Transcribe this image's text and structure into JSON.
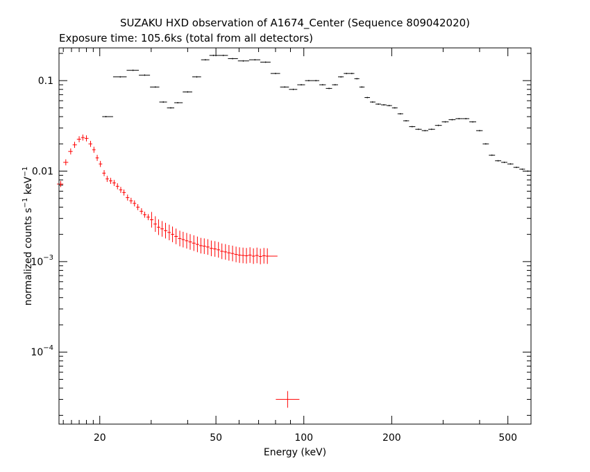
{
  "chart_data": {
    "type": "scatter",
    "title": "SUZAKU HXD observation of A1674_Center (Sequence 809042020)",
    "subtitle": "Exposure time: 105.6ks (total from all detectors)",
    "xlabel": "Energy (keV)",
    "ylabel": {
      "prefix": "normalized counts s",
      "sup1": "−1",
      "mid": " keV",
      "sup2": "−1"
    },
    "x_scale": "log",
    "y_scale": "log",
    "xlim": [
      14.5,
      600
    ],
    "ylim": [
      1.6e-05,
      0.23
    ],
    "x_ticks": [
      {
        "value": 20,
        "label": "20"
      },
      {
        "value": 50,
        "label": "50"
      },
      {
        "value": 100,
        "label": "100"
      },
      {
        "value": 200,
        "label": "200"
      },
      {
        "value": 500,
        "label": "500"
      }
    ],
    "y_ticks": [
      {
        "value": 0.1,
        "label": "0.1"
      },
      {
        "value": 0.01,
        "label": "0.01"
      },
      {
        "value": 0.001,
        "base": "10",
        "exp": "−3"
      },
      {
        "value": 0.0001,
        "base": "10",
        "exp": "−4"
      }
    ],
    "series": [
      {
        "color": "#000000",
        "points": [
          [
            21,
            0.04
          ],
          [
            23.5,
            0.11
          ],
          [
            26,
            0.13
          ],
          [
            28.5,
            0.115
          ],
          [
            31,
            0.085
          ],
          [
            33,
            0.058
          ],
          [
            35,
            0.05
          ],
          [
            37,
            0.057
          ],
          [
            40,
            0.075
          ],
          [
            43,
            0.11
          ],
          [
            46,
            0.17
          ],
          [
            49,
            0.19
          ],
          [
            53,
            0.19
          ],
          [
            57,
            0.175
          ],
          [
            62,
            0.165
          ],
          [
            68,
            0.17
          ],
          [
            74,
            0.16
          ],
          [
            80,
            0.12
          ],
          [
            86,
            0.085
          ],
          [
            92,
            0.08
          ],
          [
            98,
            0.09
          ],
          [
            104,
            0.1
          ],
          [
            110,
            0.1
          ],
          [
            116,
            0.09
          ],
          [
            122,
            0.082
          ],
          [
            128,
            0.09
          ],
          [
            134,
            0.11
          ],
          [
            140,
            0.12
          ],
          [
            146,
            0.12
          ],
          [
            152,
            0.105
          ],
          [
            158,
            0.085
          ],
          [
            165,
            0.065
          ],
          [
            172,
            0.058
          ],
          [
            180,
            0.055
          ],
          [
            188,
            0.054
          ],
          [
            196,
            0.053
          ],
          [
            205,
            0.05
          ],
          [
            214,
            0.043
          ],
          [
            224,
            0.036
          ],
          [
            235,
            0.031
          ],
          [
            247,
            0.029
          ],
          [
            260,
            0.028
          ],
          [
            274,
            0.029
          ],
          [
            289,
            0.032
          ],
          [
            305,
            0.035
          ],
          [
            322,
            0.037
          ],
          [
            340,
            0.038
          ],
          [
            359,
            0.038
          ],
          [
            379,
            0.035
          ],
          [
            400,
            0.028
          ],
          [
            420,
            0.02
          ],
          [
            441,
            0.015
          ],
          [
            463,
            0.013
          ],
          [
            486,
            0.0125
          ],
          [
            510,
            0.012
          ],
          [
            535,
            0.011
          ],
          [
            560,
            0.0105
          ],
          [
            585,
            0.01
          ]
        ]
      },
      {
        "color": "#ff0000",
        "points": [
          [
            14.7,
            0.0072
          ],
          [
            15.3,
            0.0125
          ],
          [
            15.9,
            0.0165
          ],
          [
            16.4,
            0.0195
          ],
          [
            17.0,
            0.0225
          ],
          [
            17.5,
            0.0235
          ],
          [
            18.0,
            0.023
          ],
          [
            18.6,
            0.02
          ],
          [
            19.1,
            0.0172
          ],
          [
            19.6,
            0.014
          ],
          [
            20.1,
            0.012
          ],
          [
            20.7,
            0.0095
          ],
          [
            21.2,
            0.0082
          ],
          [
            21.8,
            0.0078
          ],
          [
            22.4,
            0.0074
          ],
          [
            23.0,
            0.0068
          ],
          [
            23.6,
            0.0062
          ],
          [
            24.2,
            0.0058
          ],
          [
            24.9,
            0.0051
          ],
          [
            25.6,
            0.0047
          ],
          [
            26.3,
            0.0044
          ],
          [
            27.0,
            0.004
          ],
          [
            27.8,
            0.0036
          ],
          [
            28.5,
            0.0033
          ],
          [
            29.3,
            0.0031
          ],
          [
            30.1,
            0.0029
          ],
          [
            31.0,
            0.0026
          ],
          [
            31.8,
            0.0024
          ],
          [
            32.7,
            0.0023
          ],
          [
            33.6,
            0.0022
          ],
          [
            34.6,
            0.0021
          ],
          [
            35.5,
            0.002
          ],
          [
            36.5,
            0.0019
          ],
          [
            37.6,
            0.0018
          ],
          [
            38.6,
            0.00175
          ],
          [
            39.7,
            0.0017
          ],
          [
            40.8,
            0.00165
          ],
          [
            42.0,
            0.0016
          ],
          [
            43.2,
            0.00155
          ],
          [
            44.4,
            0.0015
          ],
          [
            45.6,
            0.00148
          ],
          [
            46.9,
            0.00145
          ],
          [
            48.2,
            0.0014
          ],
          [
            49.6,
            0.00138
          ],
          [
            51.0,
            0.00135
          ],
          [
            52.4,
            0.0013
          ],
          [
            53.9,
            0.00128
          ],
          [
            55.4,
            0.00125
          ],
          [
            57.0,
            0.00123
          ],
          [
            58.6,
            0.0012
          ],
          [
            60.2,
            0.00118
          ],
          [
            61.9,
            0.00117
          ],
          [
            63.6,
            0.00116
          ],
          [
            65.4,
            0.00118
          ],
          [
            67.2,
            0.00115
          ],
          [
            69.1,
            0.00117
          ],
          [
            71.0,
            0.00114
          ],
          [
            73.0,
            0.00116
          ],
          [
            75.0,
            0.00115
          ],
          [
            88,
            3e-05
          ]
        ]
      }
    ],
    "grid": false,
    "legend": "none"
  }
}
